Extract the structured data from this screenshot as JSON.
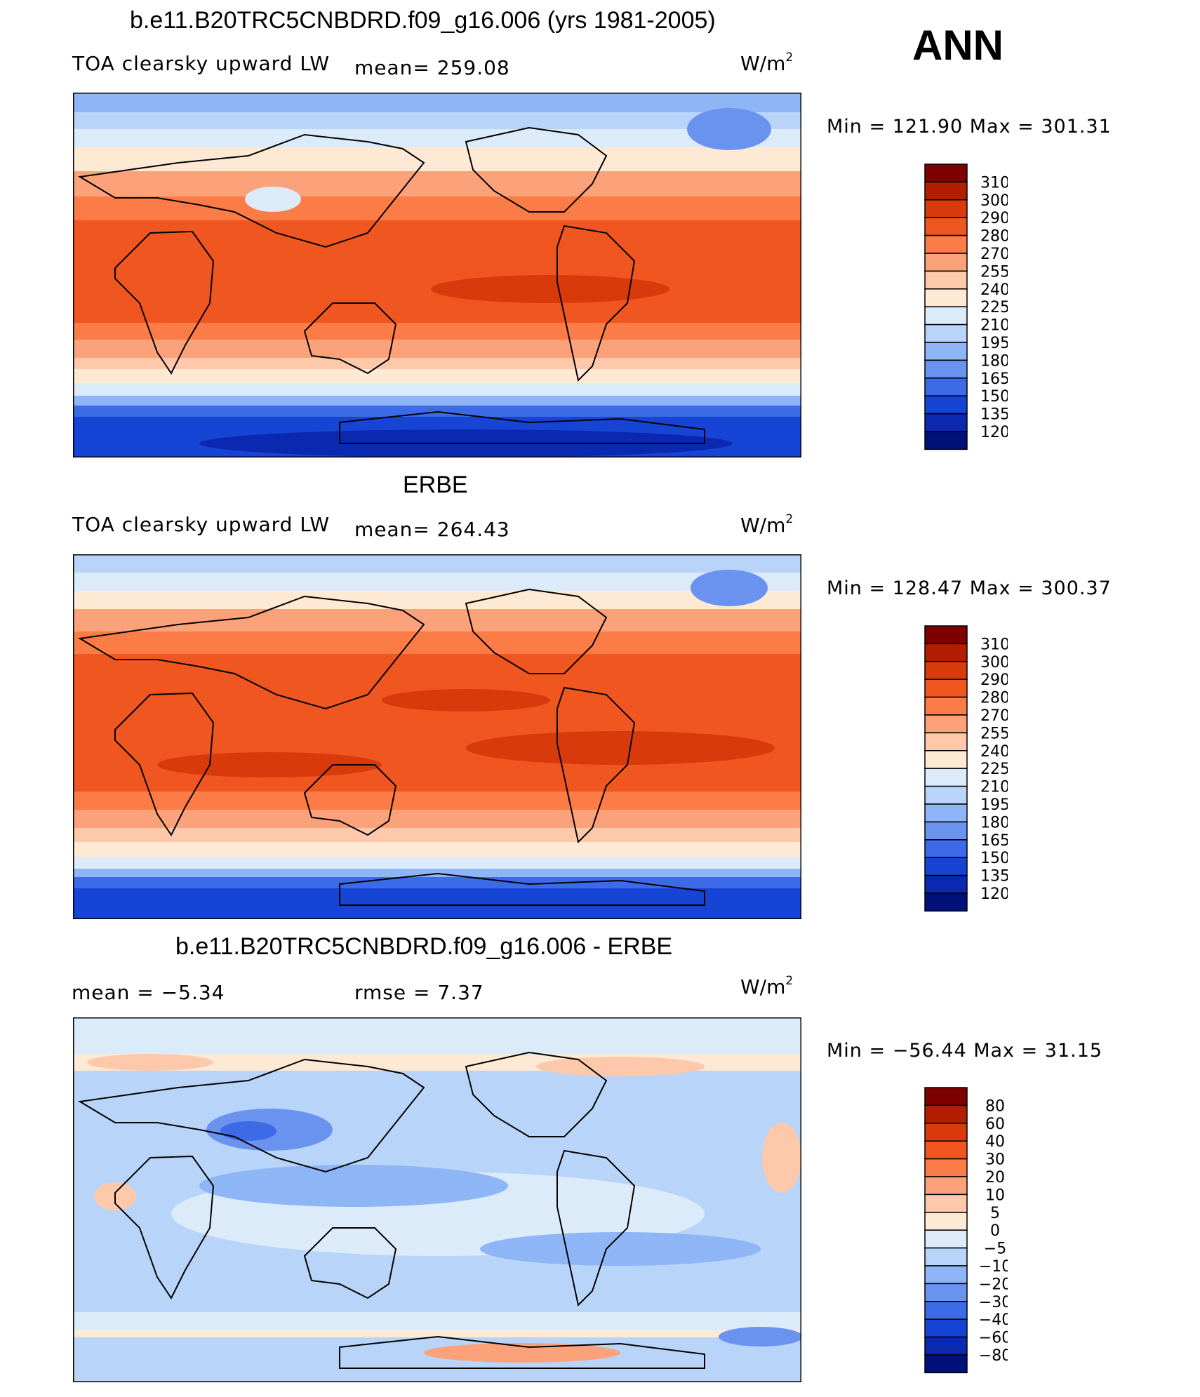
{
  "page_label": "ANN",
  "units": {
    "base": "W/m",
    "exp": "2"
  },
  "panels": [
    {
      "title": "b.e11.B20TRC5CNBDRD.f09_g16.006 (yrs 1981-2005)",
      "variable": "TOA clearsky upward LW",
      "stat_text": "mean=  259.08",
      "min_max": "Min  =  121.90  Max  =  301.31"
    },
    {
      "title": "ERBE",
      "variable": "TOA clearsky upward LW",
      "stat_text": "mean=  264.43",
      "min_max": "Min  =  128.47  Max  =  300.37"
    },
    {
      "title": "b.e11.B20TRC5CNBDRD.f09_g16.006 - ERBE",
      "mean_text": "mean  =    −5.34",
      "rmse_text": "rmse  =     7.37",
      "min_max": "Min  =  −56.44  Max  =    31.15"
    }
  ],
  "colorbar_abs": {
    "levels": [
      "310",
      "300",
      "290",
      "280",
      "270",
      "255",
      "240",
      "225",
      "210",
      "195",
      "180",
      "165",
      "150",
      "135",
      "120"
    ],
    "colors": [
      "#7f0000",
      "#b31e00",
      "#d93a0c",
      "#f0561f",
      "#fb7c46",
      "#fca27a",
      "#fdc9aa",
      "#fde9d4",
      "#dcebfa",
      "#b8d4f8",
      "#8eb5f5",
      "#6a93f0",
      "#3d6ae6",
      "#1645d6",
      "#0a28b0",
      "#00117a"
    ]
  },
  "colorbar_diff": {
    "levels": [
      "80",
      "60",
      "40",
      "30",
      "20",
      "10",
      "5",
      "0",
      "−5",
      "−10",
      "−20",
      "−30",
      "−40",
      "−60",
      "−80"
    ],
    "colors": [
      "#7f0000",
      "#b31e00",
      "#d93a0c",
      "#f0561f",
      "#fb7c46",
      "#fca27a",
      "#fdc9aa",
      "#fde9d4",
      "#dcebfa",
      "#b8d4f8",
      "#8eb5f5",
      "#6a93f0",
      "#3d6ae6",
      "#1645d6",
      "#0a28b0",
      "#00117a"
    ]
  }
}
